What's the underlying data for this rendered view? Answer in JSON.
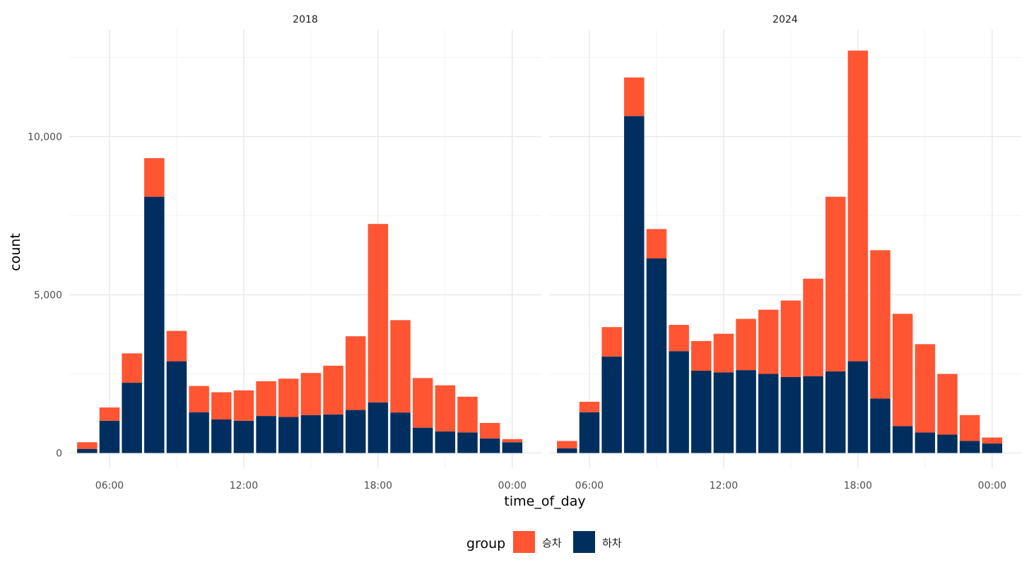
{
  "chart_data": {
    "type": "bar",
    "stacked": true,
    "xlabel": "time_of_day",
    "ylabel": "count",
    "ylim": [
      0,
      12800
    ],
    "y_ticks": [
      0,
      5000,
      10000
    ],
    "y_tick_labels": [
      "0",
      "5,000",
      "10,000"
    ],
    "x_ticks": [
      6,
      12,
      18,
      24
    ],
    "x_tick_labels": [
      "06:00",
      "12:00",
      "18:00",
      "00:00"
    ],
    "x_hours": [
      5,
      6,
      7,
      8,
      9,
      10,
      11,
      12,
      13,
      14,
      15,
      16,
      17,
      18,
      19,
      20,
      21,
      22,
      23,
      24
    ],
    "grid": true,
    "legend": {
      "title": "group",
      "position": "bottom",
      "entries": [
        {
          "label": "승차",
          "color": "#FF5533"
        },
        {
          "label": "하차",
          "color": "#002F5F"
        }
      ]
    },
    "panels": [
      {
        "title": "2018",
        "series": [
          {
            "label": "하차",
            "values": [
              130,
              1020,
              2220,
              8100,
              2900,
              1290,
              1060,
              1020,
              1170,
              1140,
              1200,
              1220,
              1360,
              1600,
              1280,
              800,
              680,
              650,
              460,
              340
            ]
          },
          {
            "label": "승차",
            "values": [
              210,
              420,
              930,
              1220,
              960,
              830,
              860,
              960,
              1100,
              1210,
              1330,
              1540,
              2330,
              5640,
              2920,
              1570,
              1460,
              1130,
              490,
              100
            ]
          }
        ]
      },
      {
        "title": "2024",
        "series": [
          {
            "label": "하차",
            "values": [
              150,
              1290,
              3050,
              10650,
              6150,
              3220,
              2600,
              2550,
              2620,
              2500,
              2400,
              2430,
              2580,
              2900,
              1720,
              850,
              650,
              580,
              380,
              300
            ]
          },
          {
            "label": "승차",
            "values": [
              230,
              330,
              930,
              1220,
              930,
              830,
              940,
              1220,
              1620,
              2030,
              2420,
              3080,
              5520,
              9820,
              4690,
              3550,
              2790,
              1920,
              820,
              190
            ]
          }
        ]
      }
    ]
  }
}
